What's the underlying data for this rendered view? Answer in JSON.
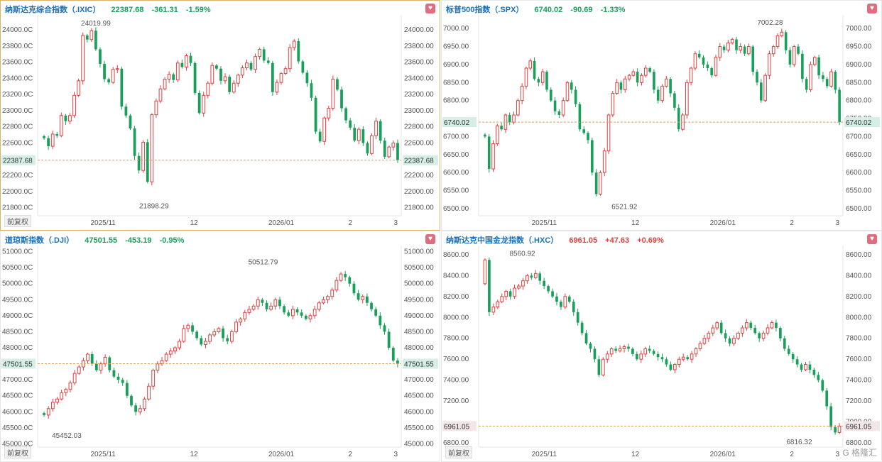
{
  "colors": {
    "up": "#e0403f",
    "down": "#18a05a",
    "accent": "#1b6fb8",
    "favorite": "#e16b7f"
  },
  "adjust_label": "前复权",
  "favorite_icon": "heart-icon",
  "watermark": "G 格隆汇",
  "panels": [
    {
      "name": "纳斯达克综合指数（.IXIC）",
      "last": "22387.68",
      "change": "-361.31",
      "pct": "-1.59%",
      "direction": "down",
      "price_tag": "22387.68",
      "high_label": "24019.99",
      "low_label": "21898.29",
      "y_ticks": [
        "24000.0C",
        "23800.0C",
        "23600.0C",
        "23400.0C",
        "23200.0C",
        "23000.0C",
        "22800.0C",
        "22600.0C",
        "22400.0C",
        "22200.0C",
        "22000.0C",
        "21800.0C"
      ],
      "y_ticks_right": [
        "24000.00",
        "23800.00",
        "23600.00",
        "23400.00",
        "23200.00",
        "23000.00",
        "22800.00",
        "22600.00",
        "22400.00",
        "22200.00",
        "22000.00",
        "21800.00"
      ],
      "x_labels": [
        "2025/11",
        "12",
        "2026/01",
        "2",
        "3"
      ]
    },
    {
      "name": "标普500指数（.SPX）",
      "last": "6740.02",
      "change": "-90.69",
      "pct": "-1.33%",
      "direction": "down",
      "price_tag": "6740.02",
      "high_label": "7002.28",
      "low_label": "6521.92",
      "y_ticks": [
        "7000.00",
        "6950.00",
        "6900.00",
        "6850.00",
        "6800.00",
        "6740.02",
        "6700.00",
        "6650.00",
        "6600.00",
        "6550.00",
        "6500.00"
      ],
      "y_ticks_right": [
        "7000.00",
        "6950.00",
        "6900.00",
        "6850.00",
        "6800.00",
        "6750.00",
        "6700.00",
        "6650.00",
        "6600.00",
        "6550.00",
        "6500.00"
      ],
      "x_labels": [
        "2025/11",
        "12",
        "2026/01",
        "2",
        "3"
      ]
    },
    {
      "name": "道琼斯指数（.DJI）",
      "last": "47501.55",
      "change": "-453.19",
      "pct": "-0.95%",
      "direction": "down",
      "price_tag": "47501.55",
      "high_label": "50512.79",
      "low_label": "45452.03",
      "y_ticks": [
        "51000.0C",
        "50500.0C",
        "50000.0C",
        "49500.0C",
        "49000.0C",
        "48500.0C",
        "48000.0C",
        "47500.0C",
        "47000.0C",
        "46500.0C",
        "46000.0C",
        "45500.0C",
        "45000.0C"
      ],
      "y_ticks_right": [
        "51000.00",
        "50500.00",
        "50000.00",
        "49500.00",
        "49000.00",
        "48500.00",
        "48000.00",
        "47500.00",
        "47000.00",
        "46500.00",
        "46000.00",
        "45500.00",
        "45000.00"
      ],
      "x_labels": [
        "2025/11",
        "12",
        "2026/01",
        "2",
        "3"
      ]
    },
    {
      "name": "纳斯达克中国金龙指数（.HXC）",
      "last": "6961.05",
      "change": "+47.63",
      "pct": "+0.69%",
      "direction": "up",
      "price_tag": "6961.05",
      "high_label": "8560.92",
      "low_label": "6816.32",
      "y_ticks": [
        "8600.00",
        "8400.00",
        "8200.00",
        "8000.00",
        "7800.00",
        "7600.00",
        "7400.00",
        "7200.00",
        "6800.00"
      ],
      "y_ticks_right": [
        "8600.00",
        "8400.00",
        "8200.00",
        "8000.00",
        "7800.00",
        "7600.00",
        "7400.00",
        "7200.00",
        "7000.00",
        "6800.00"
      ],
      "x_labels": [
        "2025/11",
        "12",
        "2026/01",
        "2",
        "3"
      ]
    }
  ],
  "chart_data": [
    {
      "type": "candlestick",
      "title": "纳斯达克综合指数（.IXIC）",
      "ylim": [
        21700,
        24150
      ],
      "last_price": 22387.68,
      "high": 24019.99,
      "low": 21898.29,
      "x_ticks": [
        "2025/11",
        "12",
        "2026/01",
        "2",
        "3"
      ],
      "close": [
        22660,
        22560,
        22710,
        22690,
        22940,
        22870,
        22940,
        23190,
        23370,
        23930,
        23880,
        23990,
        23760,
        23580,
        23390,
        23350,
        23510,
        23520,
        23050,
        22940,
        22780,
        22440,
        22260,
        22610,
        22120,
        22950,
        23120,
        23270,
        23390,
        23450,
        23380,
        23590,
        23540,
        23680,
        23590,
        23220,
        22970,
        23190,
        23340,
        23560,
        23520,
        23370,
        23420,
        23230,
        23340,
        23440,
        23530,
        23590,
        23510,
        23670,
        23760,
        23620,
        23590,
        23230,
        23350,
        23460,
        23520,
        23780,
        23860,
        23610,
        23470,
        23340,
        23160,
        22740,
        22620,
        22910,
        23030,
        23390,
        23260,
        23030,
        22880,
        22790,
        22630,
        22770,
        22600,
        22470,
        22690,
        22870,
        22630,
        22430,
        22550,
        22600,
        22390
      ]
    },
    {
      "type": "candlestick",
      "title": "标普500指数（.SPX）",
      "ylim": [
        6480,
        7030
      ],
      "last_price": 6740.02,
      "high": 7002.28,
      "low": 6521.92,
      "x_ticks": [
        "2025/11",
        "12",
        "2026/01",
        "2",
        "3"
      ],
      "close": [
        6700,
        6610,
        6680,
        6730,
        6720,
        6760,
        6740,
        6760,
        6800,
        6840,
        6890,
        6910,
        6860,
        6850,
        6880,
        6830,
        6800,
        6770,
        6760,
        6800,
        6850,
        6830,
        6790,
        6720,
        6710,
        6690,
        6600,
        6540,
        6600,
        6660,
        6760,
        6820,
        6850,
        6830,
        6860,
        6870,
        6880,
        6850,
        6870,
        6890,
        6880,
        6830,
        6800,
        6840,
        6860,
        6820,
        6780,
        6720,
        6760,
        6850,
        6890,
        6930,
        6920,
        6900,
        6890,
        6870,
        6920,
        6950,
        6940,
        6960,
        6970,
        6940,
        6950,
        6930,
        6950,
        6880,
        6850,
        6800,
        6870,
        6930,
        6950,
        6980,
        6990,
        6940,
        6900,
        6950,
        6930,
        6860,
        6830,
        6900,
        6920,
        6870,
        6860,
        6840,
        6880,
        6830,
        6740
      ]
    },
    {
      "type": "candlestick",
      "title": "道琼斯指数（.DJI）",
      "ylim": [
        44900,
        51100
      ],
      "last_price": 47501.55,
      "high": 50512.79,
      "low": 45452.03,
      "x_ticks": [
        "2025/11",
        "12",
        "2026/01",
        "2",
        "3"
      ],
      "close": [
        45900,
        46100,
        46300,
        46400,
        46600,
        46700,
        46900,
        47200,
        47400,
        47600,
        47800,
        47500,
        47300,
        47500,
        47700,
        47300,
        47100,
        47000,
        46900,
        46500,
        46200,
        46000,
        46100,
        46400,
        46800,
        47300,
        47500,
        47600,
        47800,
        47900,
        48000,
        48200,
        48600,
        48700,
        48500,
        48300,
        48100,
        48200,
        48400,
        48500,
        48600,
        48300,
        48200,
        48500,
        48800,
        48900,
        49100,
        49200,
        49300,
        49500,
        49400,
        49200,
        49300,
        49500,
        49300,
        49100,
        49000,
        49200,
        49100,
        49000,
        48900,
        49000,
        49200,
        49400,
        49500,
        49600,
        49800,
        50100,
        50300,
        50200,
        50000,
        49700,
        49500,
        49600,
        49400,
        49200,
        49000,
        48700,
        48500,
        48000,
        47600,
        47500
      ]
    },
    {
      "type": "candlestick",
      "title": "纳斯达克中国金龙指数（.HXC）",
      "ylim": [
        6760,
        8660
      ],
      "last_price": 6961.05,
      "high": 8560.92,
      "low": 6816.32,
      "x_ticks": [
        "2025/11",
        "12",
        "2026/01",
        "2",
        "3"
      ],
      "close": [
        8550,
        8050,
        8100,
        8150,
        8200,
        8250,
        8200,
        8280,
        8300,
        8350,
        8400,
        8380,
        8420,
        8350,
        8300,
        8250,
        8200,
        8150,
        8100,
        8200,
        8150,
        8050,
        7950,
        7850,
        7750,
        7700,
        7600,
        7450,
        7600,
        7650,
        7700,
        7680,
        7700,
        7720,
        7700,
        7650,
        7600,
        7650,
        7700,
        7680,
        7650,
        7620,
        7600,
        7550,
        7500,
        7550,
        7600,
        7620,
        7600,
        7650,
        7700,
        7750,
        7800,
        7850,
        7900,
        7950,
        7850,
        7800,
        7750,
        7800,
        7850,
        7900,
        7950,
        7900,
        7850,
        7800,
        7850,
        7900,
        7950,
        7900,
        7800,
        7700,
        7650,
        7600,
        7550,
        7500,
        7550,
        7500,
        7450,
        7400,
        7300,
        7150,
        6950,
        6900,
        6961
      ]
    }
  ]
}
